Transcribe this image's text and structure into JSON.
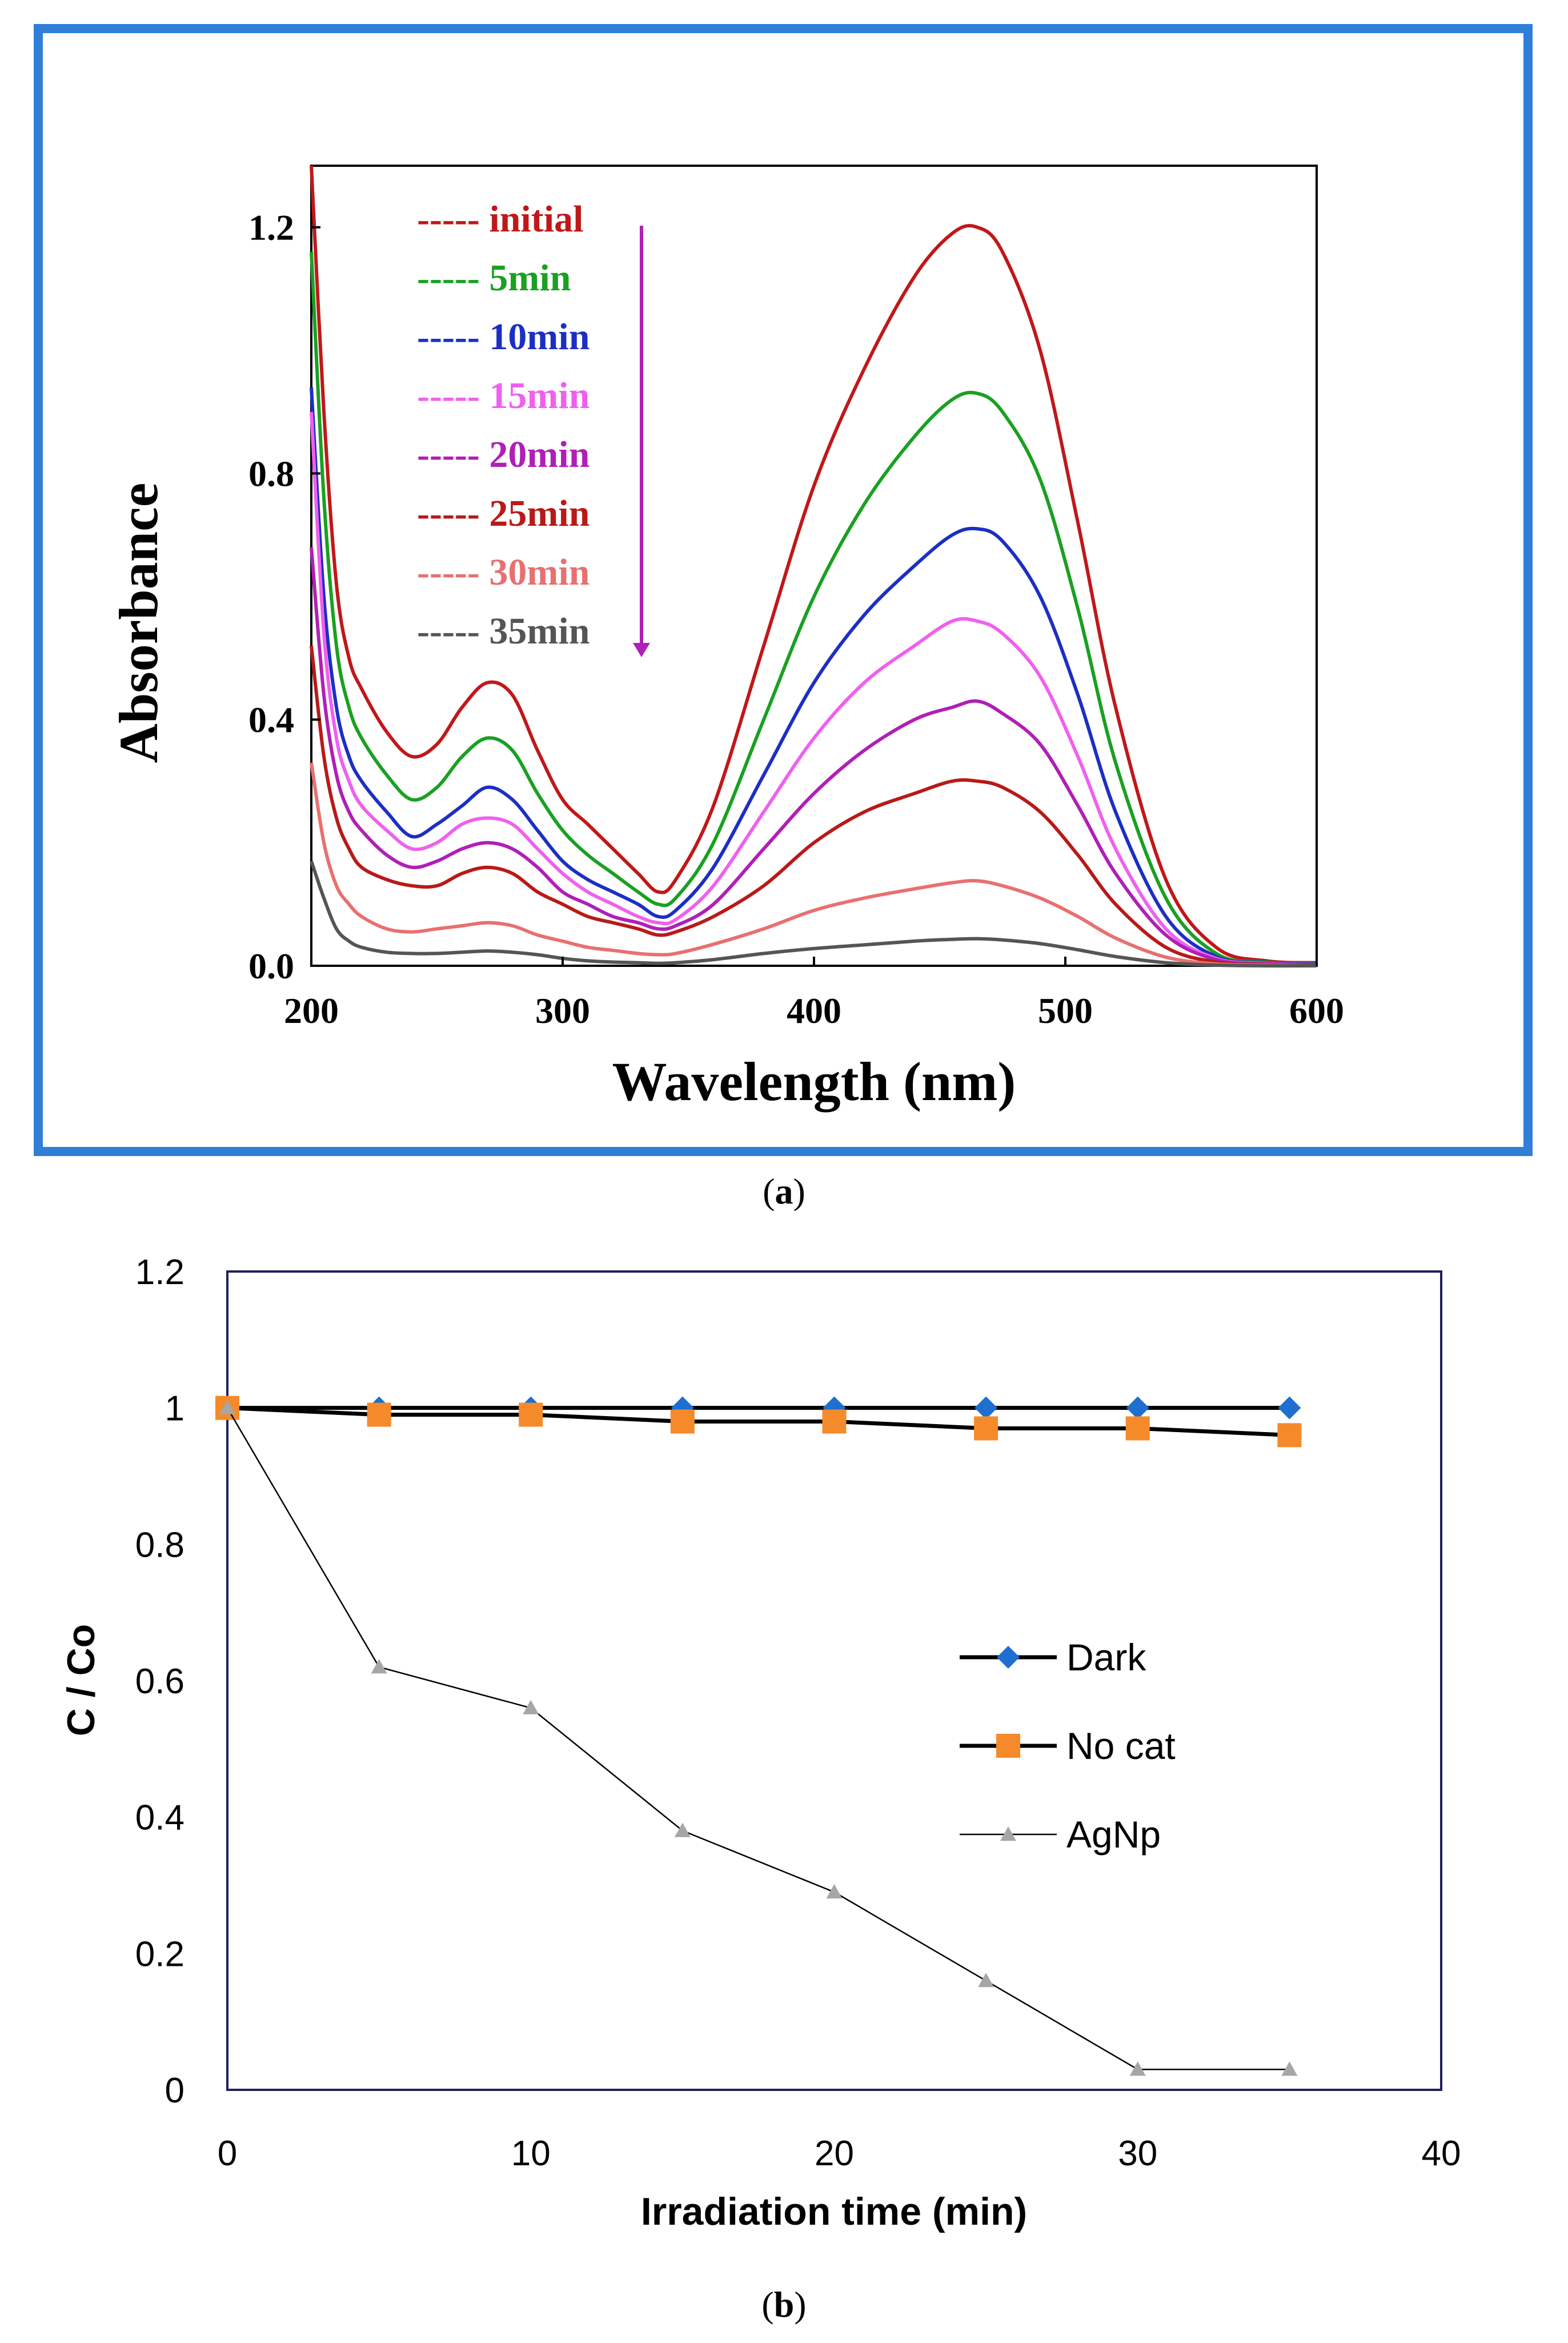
{
  "chart_data": [
    {
      "panel": "a",
      "type": "line",
      "xlabel": "Wavelength (nm)",
      "ylabel": "Absorbance",
      "xlim": [
        200,
        600
      ],
      "ylim": [
        0,
        1.3
      ],
      "xticks": [
        200,
        300,
        400,
        500,
        600
      ],
      "yticks": [
        0.0,
        0.4,
        0.8,
        1.2
      ],
      "xtick_labels": [
        "200",
        "300",
        "400",
        "500",
        "600"
      ],
      "ytick_labels": [
        "0.0",
        "0.4",
        "0.8",
        "1.2"
      ],
      "frame_color": "#2f7fd8",
      "legend_placement": "top-left",
      "x": [
        200,
        205,
        210,
        215,
        220,
        230,
        240,
        250,
        260,
        270,
        280,
        290,
        300,
        310,
        320,
        330,
        338,
        345,
        360,
        380,
        400,
        420,
        440,
        455,
        465,
        475,
        490,
        505,
        520,
        540,
        560,
        580,
        600
      ],
      "series": [
        {
          "name": "initial",
          "legend": "----- initial",
          "color": "#c0181a",
          "y": [
            1.3,
            0.9,
            0.62,
            0.5,
            0.45,
            0.38,
            0.34,
            0.36,
            0.42,
            0.46,
            0.44,
            0.35,
            0.27,
            0.23,
            0.19,
            0.15,
            0.12,
            0.14,
            0.26,
            0.52,
            0.78,
            0.97,
            1.12,
            1.19,
            1.2,
            1.16,
            1.0,
            0.72,
            0.42,
            0.14,
            0.03,
            0.008,
            0.005
          ]
        },
        {
          "name": "5min",
          "legend": "----- 5min",
          "color": "#1aa022",
          "y": [
            1.16,
            0.76,
            0.52,
            0.42,
            0.37,
            0.31,
            0.27,
            0.29,
            0.34,
            0.37,
            0.35,
            0.28,
            0.22,
            0.18,
            0.15,
            0.12,
            0.1,
            0.11,
            0.2,
            0.4,
            0.6,
            0.75,
            0.86,
            0.92,
            0.93,
            0.9,
            0.79,
            0.58,
            0.33,
            0.11,
            0.02,
            0.006,
            0.004
          ]
        },
        {
          "name": "10min",
          "legend": "----- 10min",
          "color": "#1c2fc4",
          "y": [
            0.94,
            0.6,
            0.42,
            0.34,
            0.3,
            0.25,
            0.21,
            0.23,
            0.26,
            0.29,
            0.27,
            0.22,
            0.17,
            0.14,
            0.12,
            0.1,
            0.08,
            0.09,
            0.16,
            0.31,
            0.46,
            0.57,
            0.65,
            0.7,
            0.71,
            0.69,
            0.6,
            0.44,
            0.25,
            0.08,
            0.015,
            0.005,
            0.003
          ]
        },
        {
          "name": "15min",
          "legend": "----- 15min",
          "color": "#f060ee",
          "y": [
            0.9,
            0.54,
            0.37,
            0.3,
            0.26,
            0.22,
            0.19,
            0.2,
            0.23,
            0.24,
            0.23,
            0.19,
            0.15,
            0.12,
            0.1,
            0.08,
            0.07,
            0.075,
            0.13,
            0.25,
            0.37,
            0.46,
            0.52,
            0.56,
            0.56,
            0.54,
            0.47,
            0.34,
            0.19,
            0.06,
            0.012,
            0.004,
            0.002
          ]
        },
        {
          "name": "20min",
          "legend": "----- 20min",
          "color": "#b01fb6",
          "y": [
            0.68,
            0.44,
            0.31,
            0.25,
            0.22,
            0.18,
            0.16,
            0.17,
            0.19,
            0.2,
            0.19,
            0.16,
            0.12,
            0.1,
            0.08,
            0.07,
            0.06,
            0.065,
            0.1,
            0.19,
            0.28,
            0.35,
            0.4,
            0.42,
            0.43,
            0.41,
            0.36,
            0.26,
            0.15,
            0.05,
            0.01,
            0.003,
            0.002
          ]
        },
        {
          "name": "25min",
          "legend": "----- 25min",
          "color": "#b81a18",
          "y": [
            0.52,
            0.34,
            0.24,
            0.19,
            0.16,
            0.14,
            0.13,
            0.13,
            0.15,
            0.16,
            0.15,
            0.12,
            0.1,
            0.08,
            0.07,
            0.06,
            0.05,
            0.055,
            0.08,
            0.13,
            0.2,
            0.25,
            0.28,
            0.3,
            0.3,
            0.29,
            0.25,
            0.18,
            0.1,
            0.03,
            0.006,
            0.002,
            0.001
          ]
        },
        {
          "name": "30min",
          "legend": "----- 30min",
          "color": "#e87070",
          "y": [
            0.33,
            0.2,
            0.13,
            0.1,
            0.08,
            0.06,
            0.055,
            0.06,
            0.065,
            0.07,
            0.065,
            0.05,
            0.04,
            0.03,
            0.025,
            0.02,
            0.018,
            0.02,
            0.035,
            0.06,
            0.09,
            0.11,
            0.125,
            0.135,
            0.138,
            0.13,
            0.11,
            0.08,
            0.045,
            0.014,
            0.003,
            0.001,
            0.0
          ]
        },
        {
          "name": "35min",
          "legend": "----- 35min",
          "color": "#555555",
          "y": [
            0.17,
            0.11,
            0.06,
            0.04,
            0.03,
            0.022,
            0.02,
            0.02,
            0.022,
            0.024,
            0.022,
            0.018,
            0.012,
            0.008,
            0.006,
            0.005,
            0.004,
            0.005,
            0.01,
            0.02,
            0.028,
            0.034,
            0.04,
            0.043,
            0.044,
            0.042,
            0.036,
            0.026,
            0.015,
            0.005,
            0.001,
            0.0,
            0.0
          ]
        }
      ],
      "caption_label": "a"
    },
    {
      "panel": "b",
      "type": "line",
      "xlabel": "Irradiation time (min)",
      "ylabel": "C / Co",
      "xlim": [
        0,
        40
      ],
      "ylim": [
        0,
        1.2
      ],
      "xticks": [
        0,
        10,
        20,
        30,
        40
      ],
      "yticks": [
        0,
        0.2,
        0.4,
        0.6,
        0.8,
        1,
        1.2
      ],
      "xtick_labels": [
        "0",
        "10",
        "20",
        "30",
        "40"
      ],
      "ytick_labels": [
        "0",
        "0.2",
        "0.4",
        "0.6",
        "0.8",
        "1",
        "1.2"
      ],
      "legend_placement": "right",
      "x": [
        0,
        5,
        10,
        15,
        20,
        25,
        30,
        35
      ],
      "series": [
        {
          "name": "Dark",
          "marker": "diamond",
          "color": "#1e6fd0",
          "line_color": "#000000",
          "values": [
            1.0,
            1.0,
            1.0,
            1.0,
            1.0,
            1.0,
            1.0,
            1.0
          ]
        },
        {
          "name": "No cat",
          "marker": "square",
          "color": "#f58a2a",
          "line_color": "#000000",
          "values": [
            1.0,
            0.99,
            0.99,
            0.98,
            0.98,
            0.97,
            0.97,
            0.96
          ]
        },
        {
          "name": "AgNp",
          "marker": "triangle",
          "color": "#a6a6a6",
          "line_color": "#000000",
          "values": [
            1.0,
            0.62,
            0.56,
            0.38,
            0.29,
            0.16,
            0.03,
            0.03
          ]
        }
      ],
      "caption_label": "b"
    }
  ]
}
